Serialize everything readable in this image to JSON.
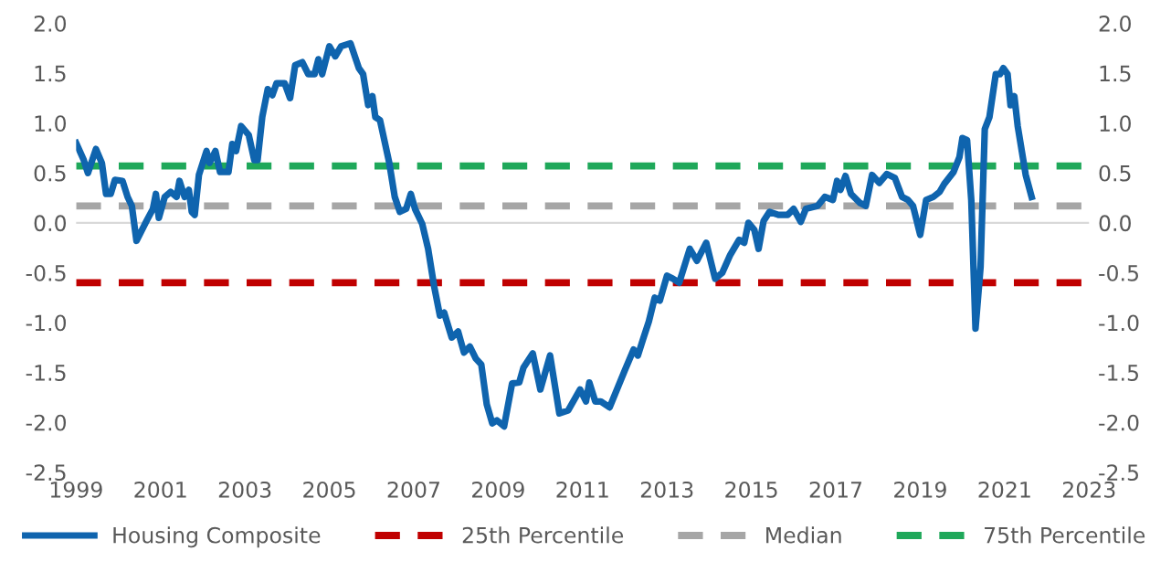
{
  "chart_data": {
    "type": "line",
    "x": [
      1999.0,
      1999.18,
      1999.28,
      1999.47,
      1999.61,
      1999.71,
      1999.82,
      1999.92,
      2000.1,
      2000.22,
      2000.32,
      2000.43,
      2000.67,
      2000.82,
      2000.89,
      2000.96,
      2001.1,
      2001.24,
      2001.38,
      2001.45,
      2001.57,
      2001.67,
      2001.74,
      2001.81,
      2001.91,
      2002.09,
      2002.16,
      2002.3,
      2002.41,
      2002.61,
      2002.7,
      2002.79,
      2002.91,
      2003.09,
      2003.22,
      2003.3,
      2003.41,
      2003.54,
      2003.65,
      2003.75,
      2003.94,
      2004.07,
      2004.19,
      2004.36,
      2004.5,
      2004.65,
      2004.74,
      2004.83,
      2005.0,
      2005.14,
      2005.28,
      2005.5,
      2005.7,
      2005.8,
      2005.92,
      2006.02,
      2006.09,
      2006.2,
      2006.42,
      2006.55,
      2006.67,
      2006.82,
      2006.93,
      2007.03,
      2007.2,
      2007.34,
      2007.48,
      2007.62,
      2007.72,
      2007.9,
      2008.05,
      2008.19,
      2008.33,
      2008.47,
      2008.6,
      2008.73,
      2008.86,
      2008.97,
      2009.14,
      2009.33,
      2009.5,
      2009.6,
      2009.82,
      2010.0,
      2010.23,
      2010.45,
      2010.66,
      2010.94,
      2011.08,
      2011.16,
      2011.3,
      2011.43,
      2011.64,
      2012.0,
      2012.21,
      2012.31,
      2012.43,
      2012.57,
      2012.71,
      2012.83,
      2013.0,
      2013.14,
      2013.29,
      2013.54,
      2013.71,
      2013.93,
      2014.14,
      2014.31,
      2014.5,
      2014.71,
      2014.83,
      2014.93,
      2015.07,
      2015.17,
      2015.29,
      2015.43,
      2015.64,
      2015.86,
      2016.0,
      2016.17,
      2016.29,
      2016.57,
      2016.74,
      2016.93,
      2017.03,
      2017.11,
      2017.23,
      2017.36,
      2017.57,
      2017.71,
      2017.86,
      2018.03,
      2018.21,
      2018.4,
      2018.57,
      2018.71,
      2018.83,
      2019.0,
      2019.14,
      2019.31,
      2019.46,
      2019.57,
      2019.79,
      2019.93,
      2020.0,
      2020.11,
      2020.21,
      2020.31,
      2020.43,
      2020.53,
      2020.64,
      2020.79,
      2020.89,
      2020.97,
      2021.07,
      2021.14,
      2021.23,
      2021.31,
      2021.5,
      2021.64
    ],
    "series": [
      {
        "name": "Housing Composite",
        "color": "#0f64ae",
        "values": [
          0.8,
          0.63,
          0.5,
          0.74,
          0.6,
          0.29,
          0.29,
          0.43,
          0.42,
          0.26,
          0.17,
          -0.18,
          0.02,
          0.14,
          0.29,
          0.05,
          0.26,
          0.31,
          0.26,
          0.42,
          0.26,
          0.33,
          0.11,
          0.08,
          0.48,
          0.72,
          0.6,
          0.72,
          0.51,
          0.51,
          0.79,
          0.72,
          0.97,
          0.88,
          0.63,
          0.63,
          1.06,
          1.34,
          1.28,
          1.4,
          1.4,
          1.25,
          1.58,
          1.61,
          1.49,
          1.49,
          1.64,
          1.49,
          1.77,
          1.67,
          1.77,
          1.8,
          1.55,
          1.49,
          1.18,
          1.27,
          1.06,
          1.03,
          0.6,
          0.26,
          0.11,
          0.14,
          0.29,
          0.14,
          -0.01,
          -0.26,
          -0.63,
          -0.93,
          -0.9,
          -1.15,
          -1.09,
          -1.3,
          -1.24,
          -1.36,
          -1.42,
          -1.82,
          -2.01,
          -1.98,
          -2.04,
          -1.61,
          -1.6,
          -1.45,
          -1.31,
          -1.67,
          -1.33,
          -1.91,
          -1.88,
          -1.67,
          -1.79,
          -1.6,
          -1.79,
          -1.79,
          -1.85,
          -1.48,
          -1.27,
          -1.33,
          -1.17,
          -0.99,
          -0.75,
          -0.78,
          -0.53,
          -0.56,
          -0.6,
          -0.26,
          -0.38,
          -0.2,
          -0.56,
          -0.5,
          -0.32,
          -0.17,
          -0.2,
          0.0,
          -0.07,
          -0.26,
          0.02,
          0.11,
          0.08,
          0.08,
          0.14,
          0.01,
          0.14,
          0.17,
          0.26,
          0.23,
          0.42,
          0.33,
          0.47,
          0.29,
          0.2,
          0.17,
          0.48,
          0.4,
          0.49,
          0.45,
          0.26,
          0.23,
          0.17,
          -0.12,
          0.23,
          0.26,
          0.31,
          0.39,
          0.51,
          0.66,
          0.85,
          0.83,
          0.23,
          -1.06,
          -0.44,
          0.94,
          1.06,
          1.49,
          1.49,
          1.55,
          1.49,
          1.18,
          1.27,
          0.97,
          0.48,
          0.26
        ]
      }
    ],
    "ref_lines": [
      {
        "axis": "y",
        "value": 0,
        "color": "#d9d9d9",
        "line_style": "solid"
      },
      {
        "axis": "y",
        "value": -0.6,
        "label": "25th Percentile",
        "color": "#c00000",
        "line_style": "dashed"
      },
      {
        "axis": "y",
        "value": 0.17,
        "label": "Median",
        "color": "#a6a6a6",
        "line_style": "dashed"
      },
      {
        "axis": "y",
        "value": 0.57,
        "label": "75th Percentile",
        "color": "#1fa85a",
        "line_style": "dashed"
      }
    ],
    "xlim": [
      1999,
      2023
    ],
    "xticks": [
      1999,
      2001,
      2003,
      2005,
      2007,
      2009,
      2011,
      2013,
      2015,
      2017,
      2019,
      2021,
      2023
    ],
    "ylim": [
      -2.5,
      2.0
    ],
    "yticks": [
      {
        "value": -2.5,
        "label": "-2.5"
      },
      {
        "value": -2.0,
        "label": "-2.0"
      },
      {
        "value": -1.5,
        "label": "-1.5"
      },
      {
        "value": -1.0,
        "label": "-1.0"
      },
      {
        "value": -0.5,
        "label": "-0.5"
      },
      {
        "value": 0,
        "label": "0.0"
      },
      {
        "value": 0.5,
        "label": "0.5"
      },
      {
        "value": 1.0,
        "label": "1.0"
      },
      {
        "value": 1.5,
        "label": "1.5"
      },
      {
        "value": 2.0,
        "label": "2.0"
      }
    ],
    "y2lim": [
      -2.5,
      2.0
    ],
    "y2ticks": [
      {
        "value": -2.5,
        "label": "-2.5"
      },
      {
        "value": -2.0,
        "label": "-2.0"
      },
      {
        "value": -1.5,
        "label": "-1.5"
      },
      {
        "value": -1.0,
        "label": "-1.0"
      },
      {
        "value": -0.5,
        "label": "-0.5"
      },
      {
        "value": 0,
        "label": "0.0"
      },
      {
        "value": 0.5,
        "label": "0.5"
      },
      {
        "value": 1.0,
        "label": "1.0"
      },
      {
        "value": 1.5,
        "label": "1.5"
      },
      {
        "value": 2.0,
        "label": "2.0"
      }
    ],
    "grid": false,
    "legend": "bottom",
    "marker": "none",
    "line_style": "solid"
  }
}
